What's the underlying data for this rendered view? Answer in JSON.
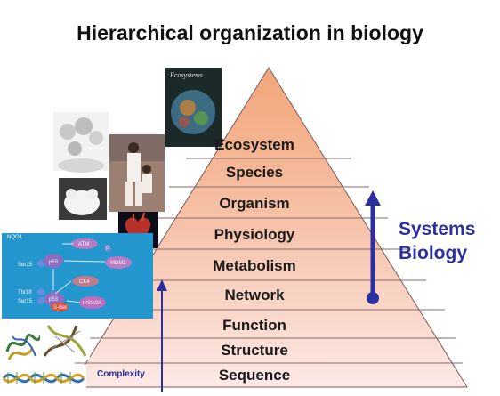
{
  "title": "Hierarchical organization in biology",
  "levels": [
    {
      "label": "Ecosystem"
    },
    {
      "label": "Species"
    },
    {
      "label": "Organism"
    },
    {
      "label": "Physiology"
    },
    {
      "label": "Metabolism"
    },
    {
      "label": "Network"
    },
    {
      "label": "Function"
    },
    {
      "label": "Structure"
    },
    {
      "label": "Sequence"
    }
  ],
  "systems_biology": {
    "line1": "Systems",
    "line2": "Biology"
  },
  "complexity_label": "Complexity",
  "book_cover_title": "Ecosystems",
  "network_labels": [
    "NQO1",
    "p53",
    "ATM",
    "Ser15",
    "P",
    "MDM2",
    "CK4",
    "Thr18",
    "Ser15",
    "p53",
    "mSin3A",
    "S-Ber"
  ],
  "colors": {
    "pyramid_top": "#f2a879",
    "pyramid_bottom": "#fbe6e2",
    "accent": "#2b2fa0"
  }
}
